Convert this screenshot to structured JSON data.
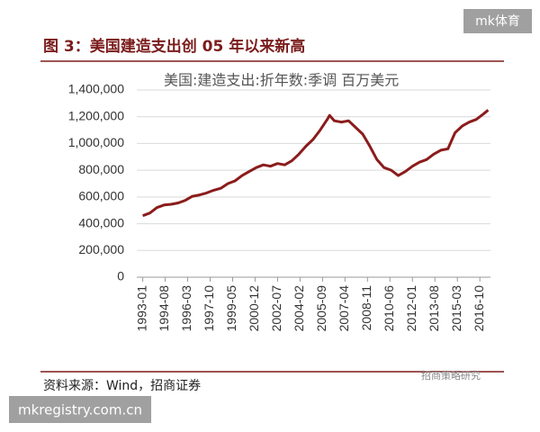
{
  "chart_data": {
    "type": "line",
    "title": "图 3：美国建造支出创 05 年以来新高",
    "source": "资料来源：Wind，招商证券",
    "x": [
      "1993-01",
      "1993-07",
      "1994-01",
      "1994-07",
      "1995-01",
      "1995-07",
      "1996-01",
      "1996-07",
      "1997-01",
      "1997-07",
      "1998-01",
      "1998-07",
      "1999-01",
      "1999-07",
      "2000-01",
      "2000-07",
      "2001-01",
      "2001-07",
      "2002-01",
      "2002-07",
      "2003-01",
      "2003-07",
      "2004-01",
      "2004-07",
      "2005-01",
      "2005-07",
      "2006-01",
      "2006-03",
      "2006-07",
      "2007-01",
      "2007-07",
      "2008-01",
      "2008-07",
      "2009-01",
      "2009-07",
      "2010-01",
      "2010-07",
      "2011-01",
      "2011-07",
      "2012-01",
      "2012-07",
      "2013-01",
      "2013-07",
      "2014-01",
      "2014-07",
      "2015-01",
      "2015-07",
      "2016-01",
      "2016-07",
      "2017-01",
      "2017-05"
    ],
    "series": [
      {
        "name": "美国:建造支出:折年数:季调 百万美元",
        "color": "#8b1c1c",
        "values": [
          460000,
          480000,
          520000,
          540000,
          545000,
          555000,
          575000,
          605000,
          615000,
          630000,
          650000,
          665000,
          700000,
          720000,
          760000,
          790000,
          820000,
          840000,
          830000,
          850000,
          840000,
          870000,
          920000,
          980000,
          1030000,
          1100000,
          1180000,
          1210000,
          1170000,
          1160000,
          1170000,
          1120000,
          1070000,
          980000,
          880000,
          820000,
          800000,
          760000,
          790000,
          830000,
          860000,
          880000,
          920000,
          950000,
          960000,
          1080000,
          1130000,
          1160000,
          1180000,
          1220000,
          1250000
        ]
      }
    ],
    "xlim": [
      "1992-08",
      "2017-07"
    ],
    "xticks": [
      "1993-01",
      "1994-08",
      "1996-03",
      "1997-10",
      "1999-05",
      "2000-12",
      "2002-07",
      "2004-02",
      "2005-09",
      "2007-04",
      "2008-11",
      "2010-06",
      "2012-01",
      "2013-08",
      "2015-03",
      "2016-10"
    ],
    "ylim": [
      0,
      1400000
    ],
    "yticks": [
      0,
      {
        "value": 200000,
        "label": "200,000"
      },
      {
        "value": 400000,
        "label": "400,000"
      },
      {
        "value": 600000,
        "label": "600,000"
      },
      {
        "value": 800000,
        "label": "800,000"
      },
      {
        "value": 1000000,
        "label": "1,000,000"
      },
      {
        "value": 1200000,
        "label": "1,200,000"
      },
      {
        "value": 1400000,
        "label": "1,400,000"
      }
    ],
    "grid": true
  },
  "watermarks": [
    "mk体育",
    "招商策略研究",
    "mkregistry.com.cn"
  ]
}
